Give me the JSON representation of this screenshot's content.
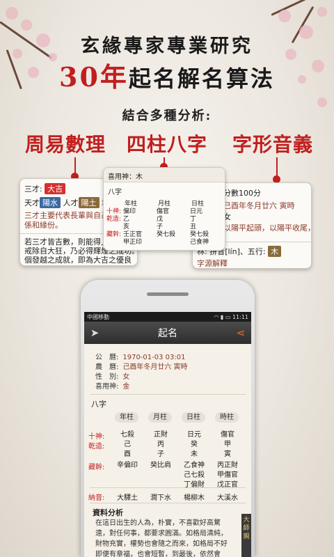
{
  "headline": {
    "line1": "玄緣專家專業研究",
    "years": "30年",
    "line2_rest": "起名解名算法",
    "subhead": "結合多種分析:"
  },
  "features": [
    {
      "label": "周易數理"
    },
    {
      "label": "四柱八字"
    },
    {
      "label": "字形音義"
    }
  ],
  "card_left": {
    "sancai_label": "三才:",
    "sancai_badge": "大吉",
    "tiancai_label": "天才",
    "tiancai_badge": "陽水",
    "rencai_label": "人才",
    "rencai_badge": "陽土",
    "dicai_label": "地",
    "text1": "三才主要代表長輩與自己",
    "text2": "係和緣份。",
    "text3": "若三才皆吉數，則能得上",
    "text4": "戒除自大狂，乃必得輝煌之成功。",
    "text5": "個發越之成就，即為大吉之優良"
  },
  "card_mid": {
    "xiyong_label": "喜用神：木",
    "section": "八字",
    "heads": [
      "年柱",
      "月柱",
      "日柱"
    ],
    "row_shishen_label": "十神:",
    "row_shishen": [
      "偏印",
      "傷官",
      "日元"
    ],
    "row_qianzao_label": "乾造:",
    "row_qianzao_top": [
      "乙",
      "戊",
      "丁"
    ],
    "row_qianzao_bot": [
      "亥",
      "子",
      "丑"
    ],
    "row_canggan_label": "藏幹:",
    "row_canggan_top": [
      "壬正官",
      "癸七殺",
      "癸七殺"
    ],
    "row_canggan_bot": [
      "甲正印",
      "",
      "己食神"
    ]
  },
  "card_right": {
    "score": "分數100分",
    "lunar": "己酉年冬月廿六 寅時",
    "gender": "女",
    "desc": "以陽平起頭，以陽平收尾，",
    "pinyin": "林: 拼音[lín]、五行:",
    "wuxing_badge": "木",
    "detail": "字源解釋"
  },
  "phone": {
    "carrier": "中國移動",
    "time": "11:11",
    "title": "起名",
    "info": [
      {
        "label": "公　曆:",
        "value": "1970-01-03 03:01"
      },
      {
        "label": "農　曆:",
        "value": "己酉年冬月廿六 寅時"
      },
      {
        "label": "性　別:",
        "value": "女"
      },
      {
        "label": "喜用神:",
        "value": "金"
      }
    ],
    "bazi_title": "八字",
    "pillar_heads": [
      "年柱",
      "月柱",
      "日柱",
      "時柱"
    ],
    "shishen_label": "十神:",
    "shishen": [
      "七殺",
      "正財",
      "日元",
      "傷官"
    ],
    "qianzao_label": "乾造:",
    "qianzao_top": [
      "己",
      "丙",
      "癸",
      "甲"
    ],
    "qianzao_bot": [
      "酉",
      "子",
      "未",
      "寅"
    ],
    "canggan_label": "藏幹:",
    "canggan_r1": [
      "辛偏印",
      "癸比肩",
      "乙食神",
      "丙正財"
    ],
    "canggan_r2": [
      "",
      "",
      "己七殺",
      "甲傷官"
    ],
    "canggan_r3": [
      "",
      "",
      "丁偏財",
      "戊正官"
    ],
    "nayin_label": "納音:",
    "nayin": [
      "大驛土",
      "澗下水",
      "楊柳木",
      "大溪水"
    ],
    "analysis_title": "資料分析",
    "analysis_lines": [
      "在這日出生的人為，朴實，不喜歡好高騖",
      "遠，對任何事，都要求圓滿。如格局清純，",
      "財物充實，權勢也會隨之而來，如格局不好",
      "即便有章福，也會短暫，到最後，依然會"
    ],
    "side_tab": "大師親"
  },
  "colors": {
    "accent_red": "#c11f1f",
    "badge_blue": "#3a6aa0",
    "badge_brown": "#8a6a3a"
  }
}
